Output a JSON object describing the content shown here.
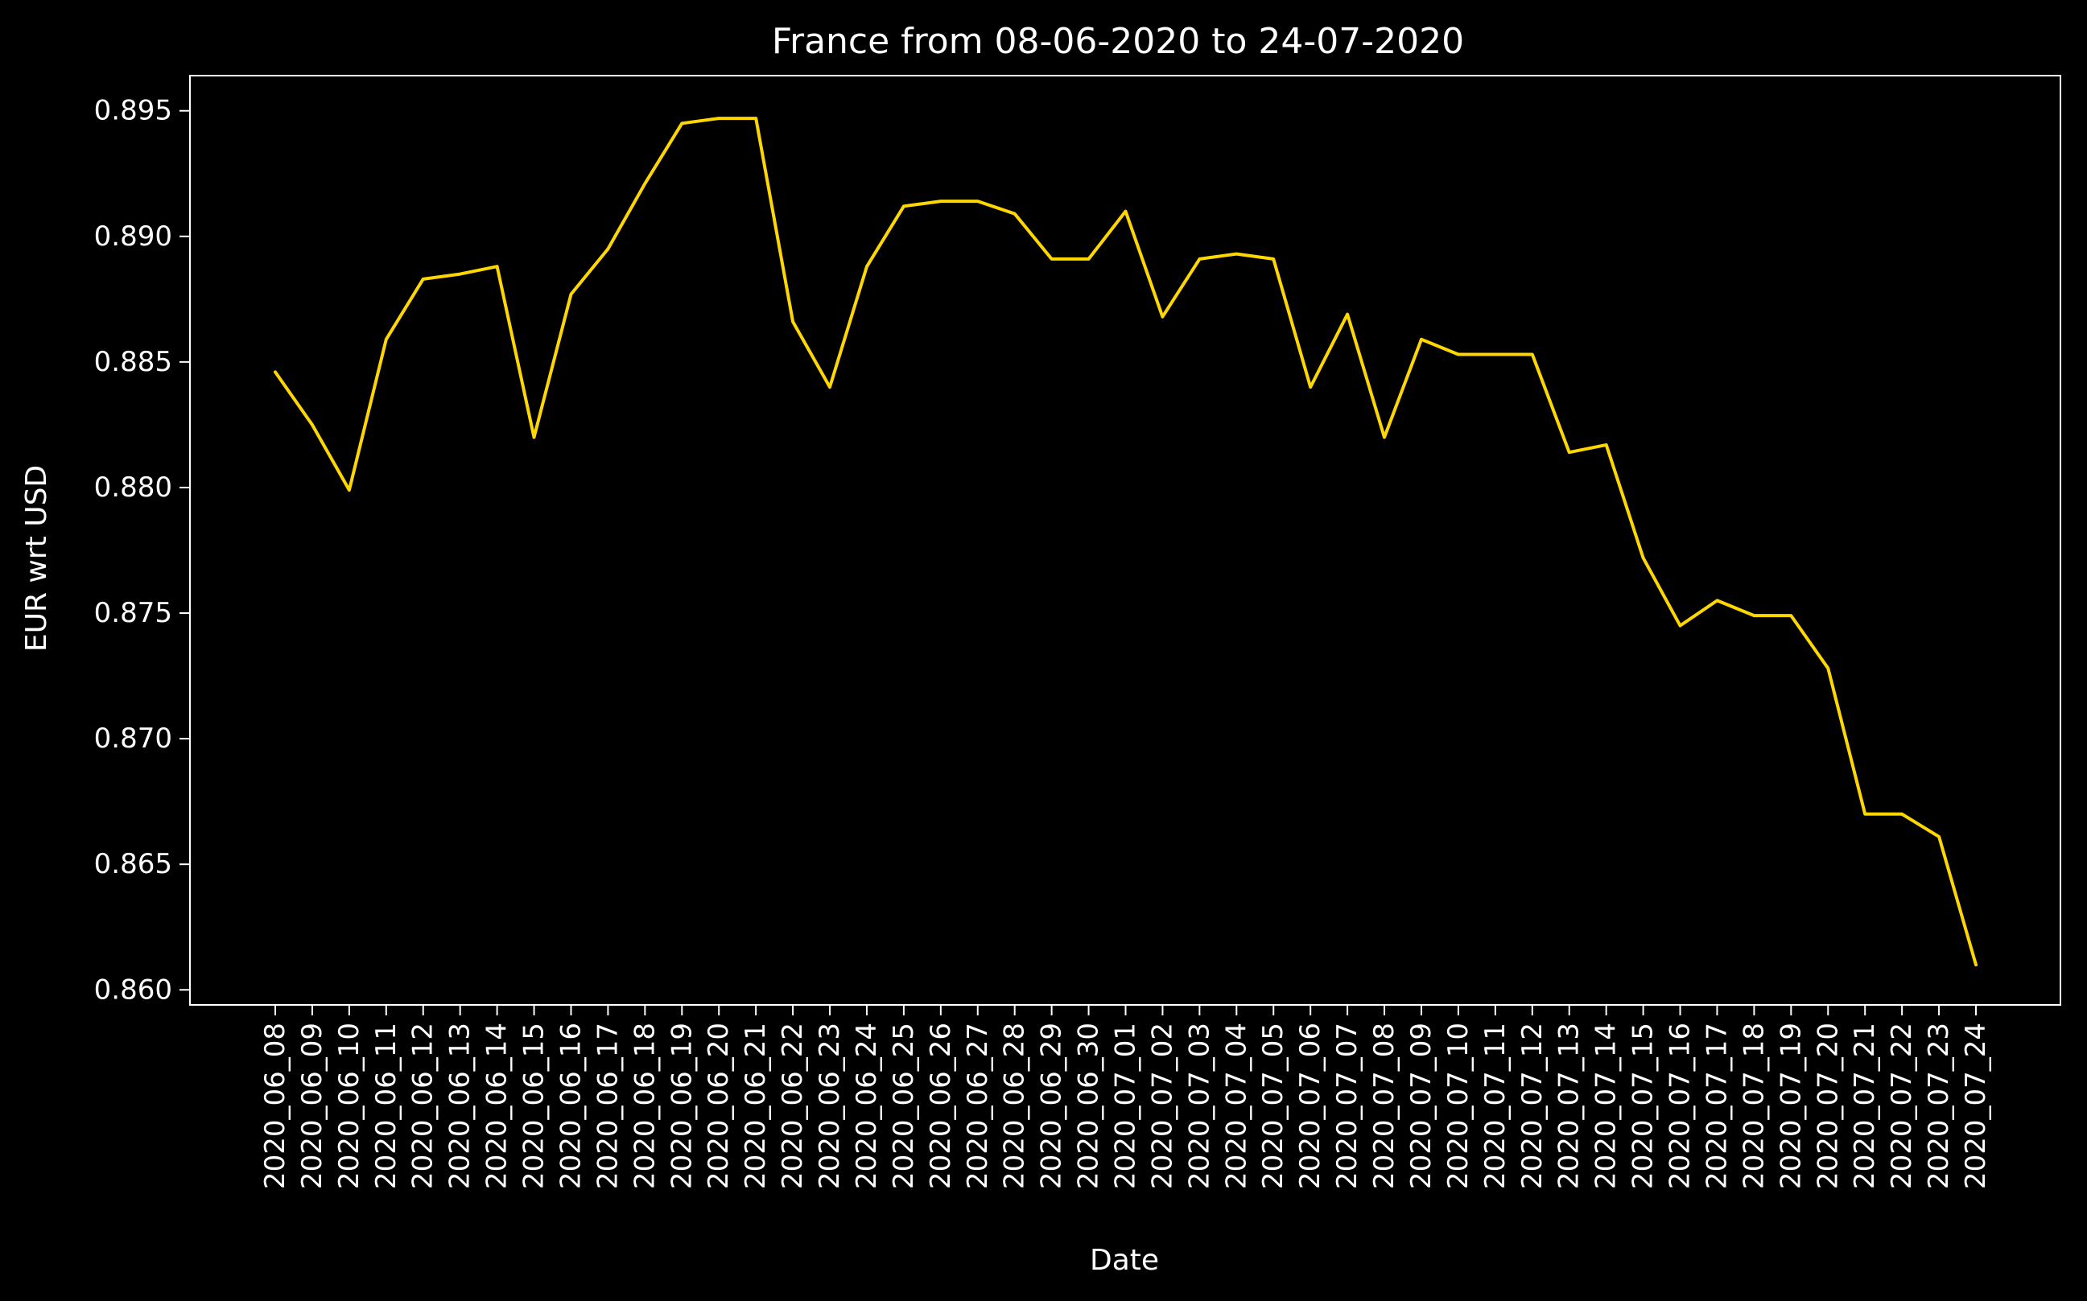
{
  "chart_data": {
    "type": "line",
    "title": "France from 08-06-2020 to 24-07-2020",
    "xlabel": "Date",
    "ylabel": "EUR wrt USD",
    "ylim": [
      0.8594,
      0.8964
    ],
    "yticks": [
      0.86,
      0.865,
      0.87,
      0.875,
      0.88,
      0.885,
      0.89,
      0.895
    ],
    "ytick_labels": [
      "0.860",
      "0.865",
      "0.870",
      "0.875",
      "0.880",
      "0.885",
      "0.890",
      "0.895"
    ],
    "grid": false,
    "background": "#000000",
    "text_color": "#ffffff",
    "categories": [
      "2020_06_08",
      "2020_06_09",
      "2020_06_10",
      "2020_06_11",
      "2020_06_12",
      "2020_06_13",
      "2020_06_14",
      "2020_06_15",
      "2020_06_16",
      "2020_06_17",
      "2020_06_18",
      "2020_06_19",
      "2020_06_20",
      "2020_06_21",
      "2020_06_22",
      "2020_06_23",
      "2020_06_24",
      "2020_06_25",
      "2020_06_26",
      "2020_06_27",
      "2020_06_28",
      "2020_06_29",
      "2020_06_30",
      "2020_07_01",
      "2020_07_02",
      "2020_07_03",
      "2020_07_04",
      "2020_07_05",
      "2020_07_06",
      "2020_07_07",
      "2020_07_08",
      "2020_07_09",
      "2020_07_10",
      "2020_07_11",
      "2020_07_12",
      "2020_07_13",
      "2020_07_14",
      "2020_07_15",
      "2020_07_16",
      "2020_07_17",
      "2020_07_18",
      "2020_07_19",
      "2020_07_20",
      "2020_07_21",
      "2020_07_22",
      "2020_07_23",
      "2020_07_24"
    ],
    "series": [
      {
        "color": "#ffd700",
        "values": [
          0.8846,
          0.8825,
          0.8799,
          0.8859,
          0.8883,
          0.8885,
          0.8888,
          0.882,
          0.8877,
          0.8895,
          0.8921,
          0.8945,
          0.8947,
          0.8947,
          0.8866,
          0.884,
          0.8888,
          0.8912,
          0.8914,
          0.8914,
          0.8909,
          0.8891,
          0.8891,
          0.891,
          0.8868,
          0.8891,
          0.8893,
          0.8891,
          0.884,
          0.8869,
          0.882,
          0.8859,
          0.8853,
          0.8853,
          0.8853,
          0.8814,
          0.8817,
          0.8772,
          0.8745,
          0.8755,
          0.8749,
          0.8749,
          0.8728,
          0.867,
          0.867,
          0.8661,
          0.861
        ]
      }
    ]
  }
}
